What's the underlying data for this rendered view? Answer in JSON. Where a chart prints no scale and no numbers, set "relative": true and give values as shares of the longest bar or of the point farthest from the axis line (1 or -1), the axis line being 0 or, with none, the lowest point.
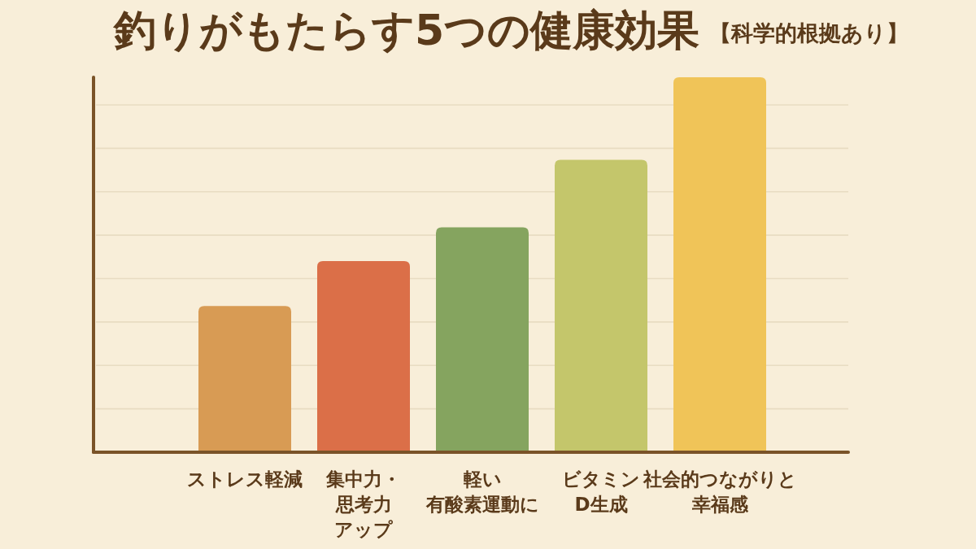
{
  "chart_data": {
    "type": "bar",
    "title": "釣りがもたらす5つの健康効果",
    "subtitle": "【科学的根拠あり】",
    "categories": [
      "ストレス軽減",
      "集中力・思考力アップ",
      "軽い有酸素運動に",
      "ビタミンD生成",
      "社会的つながりと幸福感"
    ],
    "values": [
      0.39,
      0.51,
      0.6,
      0.78,
      1
    ],
    "colors": [
      "#d89b54",
      "#db6f48",
      "#85a45f",
      "#c4c66b",
      "#f0c458"
    ],
    "relative": true,
    "grid": true
  }
}
